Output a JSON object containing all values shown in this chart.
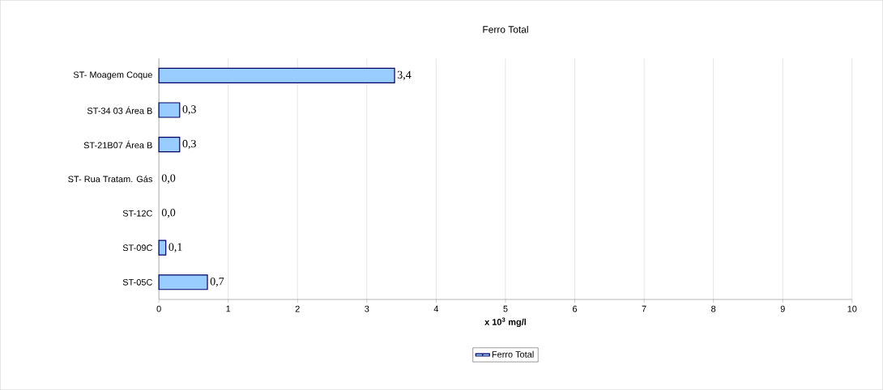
{
  "chart_data": {
    "type": "bar",
    "orientation": "horizontal",
    "title": "Ferro Total",
    "xlabel": "**x 10$^{3}$ mg/l**",
    "categories": [
      "ST- Moagem Coque",
      "ST-34 03 Área B",
      "ST-21B07 Área B",
      "ST- Rua Tratam. Gás",
      "ST-12C",
      "ST-09C",
      "ST-05C"
    ],
    "series": [
      {
        "name": "Ferro Total",
        "color": "#99ccff",
        "values": [
          3.4,
          0.3,
          0.3,
          0.0,
          0.0,
          0.1,
          0.7
        ],
        "value_labels": [
          "3,4",
          "0,3",
          "0,3",
          "0,0",
          "0,0",
          "0,1",
          "0,7"
        ]
      }
    ],
    "xlim": [
      0,
      10
    ],
    "xticks": [
      0,
      1,
      2,
      3,
      4,
      5,
      6,
      7,
      8,
      9,
      10
    ],
    "grid": "x",
    "legend": "bottom"
  }
}
